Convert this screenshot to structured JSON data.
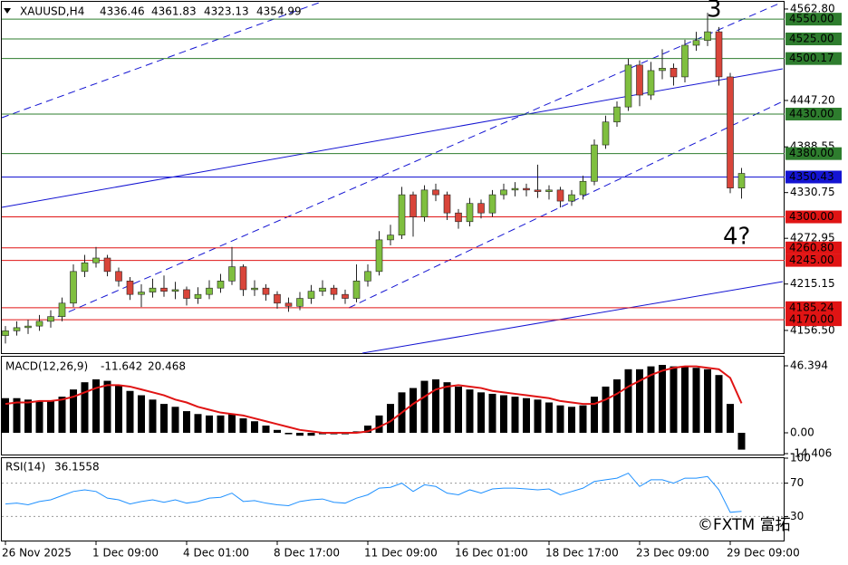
{
  "chart_data": [
    {
      "type": "candlestick",
      "title": "XAUUSD,H4",
      "categories": [
        "26 Nov 2025",
        null,
        null,
        null,
        null,
        null,
        null,
        null,
        "1 Dec 09:00",
        null,
        null,
        null,
        null,
        null,
        null,
        null,
        "4 Dec 01:00",
        null,
        null,
        null,
        null,
        null,
        null,
        null,
        "8 Dec 17:00",
        null,
        null,
        null,
        null,
        null,
        null,
        null,
        "11 Dec 09:00",
        null,
        null,
        null,
        null,
        null,
        null,
        null,
        "16 Dec 01:00",
        null,
        null,
        null,
        null,
        null,
        null,
        null,
        "18 Dec 17:00",
        null,
        null,
        null,
        null,
        null,
        null,
        null,
        "23 Dec 09:00",
        null,
        null,
        null,
        null,
        null,
        null,
        null,
        "29 Dec 09:00",
        null
      ],
      "open": [
        4150,
        4156,
        4160,
        4162,
        4168,
        4174,
        4191,
        4231,
        4242,
        4248,
        4231,
        4219,
        4202,
        4205,
        4210,
        4206,
        4208,
        4197,
        4202,
        4210,
        4219,
        4237,
        4208,
        4210,
        4202,
        4191,
        4187,
        4197,
        4206,
        4210,
        4202,
        4197,
        4219,
        4231,
        4271,
        4277,
        4328,
        4300,
        4334,
        4328,
        4305,
        4294,
        4317,
        4305,
        4328,
        4334,
        4336,
        4334,
        4332,
        4334,
        4320,
        4328,
        4345,
        4391,
        4420,
        4439,
        4492,
        4454,
        4485,
        4488,
        4477,
        4517,
        4523,
        4534,
        4477,
        4336.46
      ],
      "high": [
        4162,
        4168,
        4170,
        4176,
        4182,
        4198,
        4240,
        4252,
        4262,
        4252,
        4236,
        4224,
        4215,
        4222,
        4226,
        4218,
        4212,
        4211,
        4220,
        4228,
        4262,
        4240,
        4220,
        4215,
        4206,
        4198,
        4205,
        4214,
        4220,
        4214,
        4208,
        4240,
        4240,
        4282,
        4290,
        4338,
        4332,
        4340,
        4342,
        4332,
        4310,
        4324,
        4322,
        4334,
        4342,
        4344,
        4342,
        4366,
        4340,
        4338,
        4334,
        4352,
        4398,
        4428,
        4446,
        4500,
        4498,
        4496,
        4512,
        4494,
        4524,
        4534,
        4558,
        4540,
        4482,
        4361.83
      ],
      "low": [
        4140,
        4150,
        4152,
        4156,
        4160,
        4168,
        4186,
        4224,
        4236,
        4225,
        4212,
        4195,
        4186,
        4198,
        4199,
        4196,
        4188,
        4190,
        4196,
        4204,
        4214,
        4200,
        4200,
        4194,
        4184,
        4180,
        4182,
        4190,
        4200,
        4195,
        4190,
        4192,
        4212,
        4226,
        4264,
        4272,
        4275,
        4294,
        4320,
        4296,
        4285,
        4288,
        4298,
        4300,
        4322,
        4326,
        4326,
        4324,
        4322,
        4312,
        4314,
        4322,
        4340,
        4386,
        4414,
        4434,
        4440,
        4448,
        4474,
        4466,
        4470,
        4510,
        4516,
        4466,
        4330,
        4323.13
      ],
      "close": [
        4156,
        4160,
        4162,
        4168,
        4174,
        4191,
        4231,
        4242,
        4248,
        4231,
        4219,
        4202,
        4205,
        4210,
        4206,
        4208,
        4197,
        4202,
        4210,
        4219,
        4237,
        4208,
        4210,
        4202,
        4191,
        4187,
        4197,
        4206,
        4210,
        4202,
        4197,
        4219,
        4231,
        4271,
        4277,
        4328,
        4300,
        4334,
        4328,
        4305,
        4294,
        4317,
        4305,
        4328,
        4334,
        4336,
        4334,
        4332,
        4334,
        4320,
        4328,
        4345,
        4391,
        4420,
        4439,
        4492,
        4454,
        4485,
        4488,
        4477,
        4517,
        4523,
        4534,
        4477,
        4336.5,
        4354.99
      ],
      "up_color": "#7fbf3f",
      "down_color": "#d9453a",
      "ylim": [
        4127.8,
        4574.2
      ],
      "yticks": [
        {
          "value": 4562.8,
          "label": "4562.80"
        },
        {
          "value": 4447.2,
          "label": "4447.20"
        },
        4388.55,
        4330.75,
        4272.95,
        4215.15,
        {
          "value": 4156.5,
          "label": "4156.50"
        }
      ],
      "levels": [
        {
          "value": 4550,
          "label": "4550.00",
          "color": "#2e7d2e"
        },
        {
          "value": 4525,
          "label": "4525.00",
          "color": "#2e7d2e"
        },
        {
          "value": 4500.17,
          "label": "4500.17",
          "color": "#2e7d2e"
        },
        {
          "value": 4430,
          "label": "4430.00",
          "color": "#2e7d2e"
        },
        {
          "value": 4380,
          "label": "4380.00",
          "color": "#2e7d2e"
        },
        {
          "value": 4350.43,
          "label": "4350.43",
          "color": "#1414d2"
        },
        {
          "value": 4300,
          "label": "4300.00",
          "color": "#e01414"
        },
        {
          "value": 4260.8,
          "label": "4260.80",
          "color": "#e01414"
        },
        {
          "value": 4245,
          "label": "4245.00",
          "color": "#e01414"
        },
        {
          "value": 4185.24,
          "label": "4185.24",
          "color": "#e01414"
        },
        {
          "value": 4170,
          "label": "4170.00",
          "color": "#e01414"
        }
      ],
      "annotations": [
        "3",
        "4?"
      ],
      "watermark": "©FXTM 富拓"
    },
    {
      "type": "macd",
      "title": "MACD(12,26,9)",
      "series": [
        {
          "name": "MACD",
          "color": "#000000",
          "values": [
            24,
            24,
            23,
            22,
            22,
            25,
            30,
            35,
            37,
            36,
            33,
            29,
            26,
            23,
            20,
            18,
            15,
            13,
            12,
            12,
            13,
            10,
            8,
            5,
            2,
            -1,
            -2,
            -2,
            -1,
            -1,
            -1,
            1,
            5,
            12,
            20,
            28,
            31,
            36,
            37,
            35,
            32,
            30,
            28,
            27,
            26,
            25,
            24,
            23,
            21,
            19,
            18,
            19,
            25,
            32,
            37,
            44,
            44,
            46,
            47,
            46,
            46,
            45,
            44,
            40,
            20,
            -11.642
          ]
        },
        {
          "name": "Signal",
          "color": "#e01414",
          "values": [
            20,
            21,
            21,
            22,
            22,
            23,
            25,
            28,
            31,
            33,
            33,
            32,
            30,
            28,
            26,
            23,
            21,
            18,
            16,
            14,
            13,
            12,
            10,
            8,
            6,
            4,
            2,
            1,
            0,
            0,
            0,
            0,
            1,
            4,
            8,
            14,
            20,
            25,
            30,
            32,
            33,
            32,
            31,
            29,
            28,
            27,
            26,
            25,
            24,
            22,
            21,
            20,
            20,
            23,
            27,
            32,
            36,
            40,
            43,
            45,
            46,
            46,
            45,
            44,
            38,
            20.468
          ]
        }
      ],
      "ylim": [
        -15.04,
        52.66
      ],
      "yticks": [
        46.394,
        {
          "value": 0,
          "label": "0.00"
        },
        -14.406
      ]
    },
    {
      "type": "rsi",
      "title": "RSI(14)",
      "series": [
        {
          "name": "RSI",
          "color": "#1e90ff",
          "values": [
            45,
            46,
            44,
            48,
            50,
            55,
            60,
            62,
            60,
            52,
            50,
            45,
            48,
            50,
            47,
            50,
            46,
            48,
            52,
            53,
            58,
            48,
            49,
            46,
            44,
            43,
            48,
            50,
            51,
            47,
            46,
            52,
            56,
            64,
            65,
            70,
            60,
            68,
            66,
            58,
            56,
            62,
            58,
            63,
            64,
            64,
            63,
            62,
            63,
            56,
            60,
            64,
            72,
            74,
            76,
            82,
            66,
            74,
            74,
            70,
            76,
            76,
            78,
            62,
            35,
            36.1558
          ]
        }
      ],
      "ylim": [
        0,
        100
      ],
      "yticks": [
        100,
        70,
        30
      ]
    }
  ]
}
